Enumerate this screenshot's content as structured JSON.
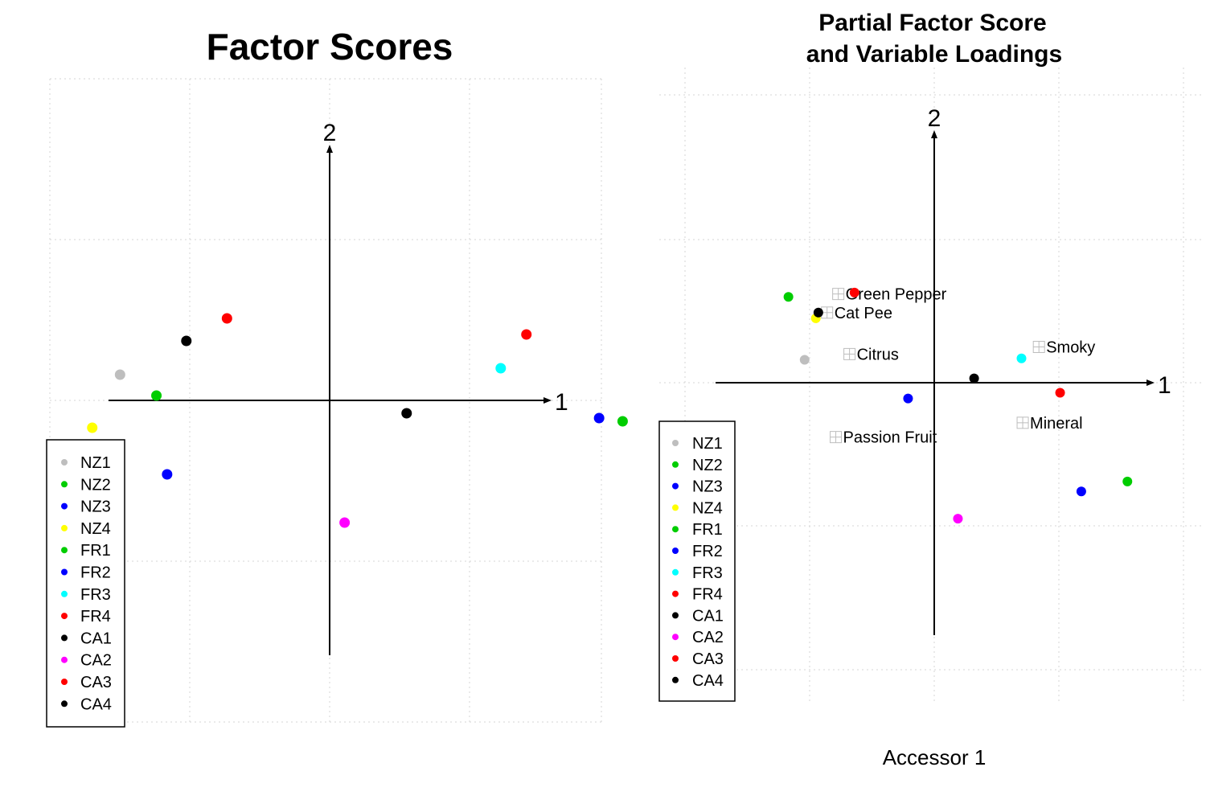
{
  "chart_data": [
    {
      "type": "scatter",
      "title": "Factor Scores",
      "xlabel": "1",
      "ylabel": "2",
      "grid": true,
      "legend_position": "bottom-left",
      "legend": [
        {
          "label": "NZ1",
          "color": "#bebebe"
        },
        {
          "label": "NZ2",
          "color": "#00cd00"
        },
        {
          "label": "NZ3",
          "color": "#0000ff"
        },
        {
          "label": "NZ4",
          "color": "#ffff00"
        },
        {
          "label": "FR1",
          "color": "#00cd00"
        },
        {
          "label": "FR2",
          "color": "#0000ff"
        },
        {
          "label": "FR3",
          "color": "#00ffff"
        },
        {
          "label": "FR4",
          "color": "#ff0000"
        },
        {
          "label": "CA1",
          "color": "#000000"
        },
        {
          "label": "CA2",
          "color": "#ff00ff"
        },
        {
          "label": "CA3",
          "color": "#ff0000"
        },
        {
          "label": "CA4",
          "color": "#000000"
        }
      ],
      "points": [
        {
          "label": "NZ1",
          "x": -0.98,
          "y": 0.16,
          "color": "#bebebe"
        },
        {
          "label": "NZ2",
          "x": -0.81,
          "y": 0.03,
          "color": "#00cd00"
        },
        {
          "label": "NZ3",
          "x": -0.76,
          "y": -0.46,
          "color": "#0000ff"
        },
        {
          "label": "NZ4",
          "x": -1.11,
          "y": -0.17,
          "color": "#ffff00"
        },
        {
          "label": "FR1",
          "x": 1.37,
          "y": -0.13,
          "color": "#00cd00"
        },
        {
          "label": "FR2",
          "x": 1.26,
          "y": -0.11,
          "color": "#0000ff"
        },
        {
          "label": "FR3",
          "x": 0.8,
          "y": 0.2,
          "color": "#00ffff"
        },
        {
          "label": "FR4",
          "x": 0.92,
          "y": 0.41,
          "color": "#ff0000"
        },
        {
          "label": "CA1",
          "x": 0.36,
          "y": -0.08,
          "color": "#000000"
        },
        {
          "label": "CA2",
          "x": 0.07,
          "y": -0.76,
          "color": "#ff00ff"
        },
        {
          "label": "CA3",
          "x": -0.48,
          "y": 0.51,
          "color": "#ff0000"
        },
        {
          "label": "CA4",
          "x": -0.67,
          "y": 0.37,
          "color": "#000000"
        }
      ]
    },
    {
      "type": "scatter",
      "title": "Partial Factor Score\nand Variable Loadings",
      "title_lines": [
        "Partial Factor Score",
        "and Variable Loadings"
      ],
      "xlabel": "1",
      "ylabel": "2",
      "caption": "Accessor 1",
      "grid": true,
      "legend_position": "bottom-left",
      "legend": [
        {
          "label": "NZ1",
          "color": "#bebebe"
        },
        {
          "label": "NZ2",
          "color": "#00cd00"
        },
        {
          "label": "NZ3",
          "color": "#0000ff"
        },
        {
          "label": "NZ4",
          "color": "#ffff00"
        },
        {
          "label": "FR1",
          "color": "#00cd00"
        },
        {
          "label": "FR2",
          "color": "#0000ff"
        },
        {
          "label": "FR3",
          "color": "#00ffff"
        },
        {
          "label": "FR4",
          "color": "#ff0000"
        },
        {
          "label": "CA1",
          "color": "#000000"
        },
        {
          "label": "CA2",
          "color": "#ff00ff"
        },
        {
          "label": "CA3",
          "color": "#ff0000"
        },
        {
          "label": "CA4",
          "color": "#000000"
        }
      ],
      "points": [
        {
          "label": "NZ1",
          "x": -1.04,
          "y": 0.16,
          "color": "#bebebe"
        },
        {
          "label": "NZ2",
          "x": -1.17,
          "y": 0.6,
          "color": "#00cd00"
        },
        {
          "label": "NZ3",
          "x": -0.21,
          "y": -0.11,
          "color": "#0000ff"
        },
        {
          "label": "NZ4",
          "x": -0.95,
          "y": 0.45,
          "color": "#ffff00"
        },
        {
          "label": "FR1",
          "x": 1.55,
          "y": -0.69,
          "color": "#00cd00"
        },
        {
          "label": "FR2",
          "x": 1.18,
          "y": -0.76,
          "color": "#0000ff"
        },
        {
          "label": "FR3",
          "x": 0.7,
          "y": 0.17,
          "color": "#00ffff"
        },
        {
          "label": "FR4",
          "x": 1.01,
          "y": -0.07,
          "color": "#ff0000"
        },
        {
          "label": "CA1",
          "x": 0.32,
          "y": 0.03,
          "color": "#000000"
        },
        {
          "label": "CA2",
          "x": 0.19,
          "y": -0.95,
          "color": "#ff00ff"
        },
        {
          "label": "CA3",
          "x": -0.64,
          "y": 0.63,
          "color": "#ff0000"
        },
        {
          "label": "CA4",
          "x": -0.93,
          "y": 0.49,
          "color": "#000000"
        }
      ],
      "variables": [
        {
          "label": "Green Pepper",
          "x": -0.77,
          "y": 0.62
        },
        {
          "label": "Cat Pee",
          "x": -0.86,
          "y": 0.49
        },
        {
          "label": "Citrus",
          "x": -0.68,
          "y": 0.2
        },
        {
          "label": "Smoky",
          "x": 0.84,
          "y": 0.25
        },
        {
          "label": "Mineral",
          "x": 0.71,
          "y": -0.28
        },
        {
          "label": "Passion Fruit",
          "x": -0.79,
          "y": -0.38
        }
      ]
    }
  ]
}
